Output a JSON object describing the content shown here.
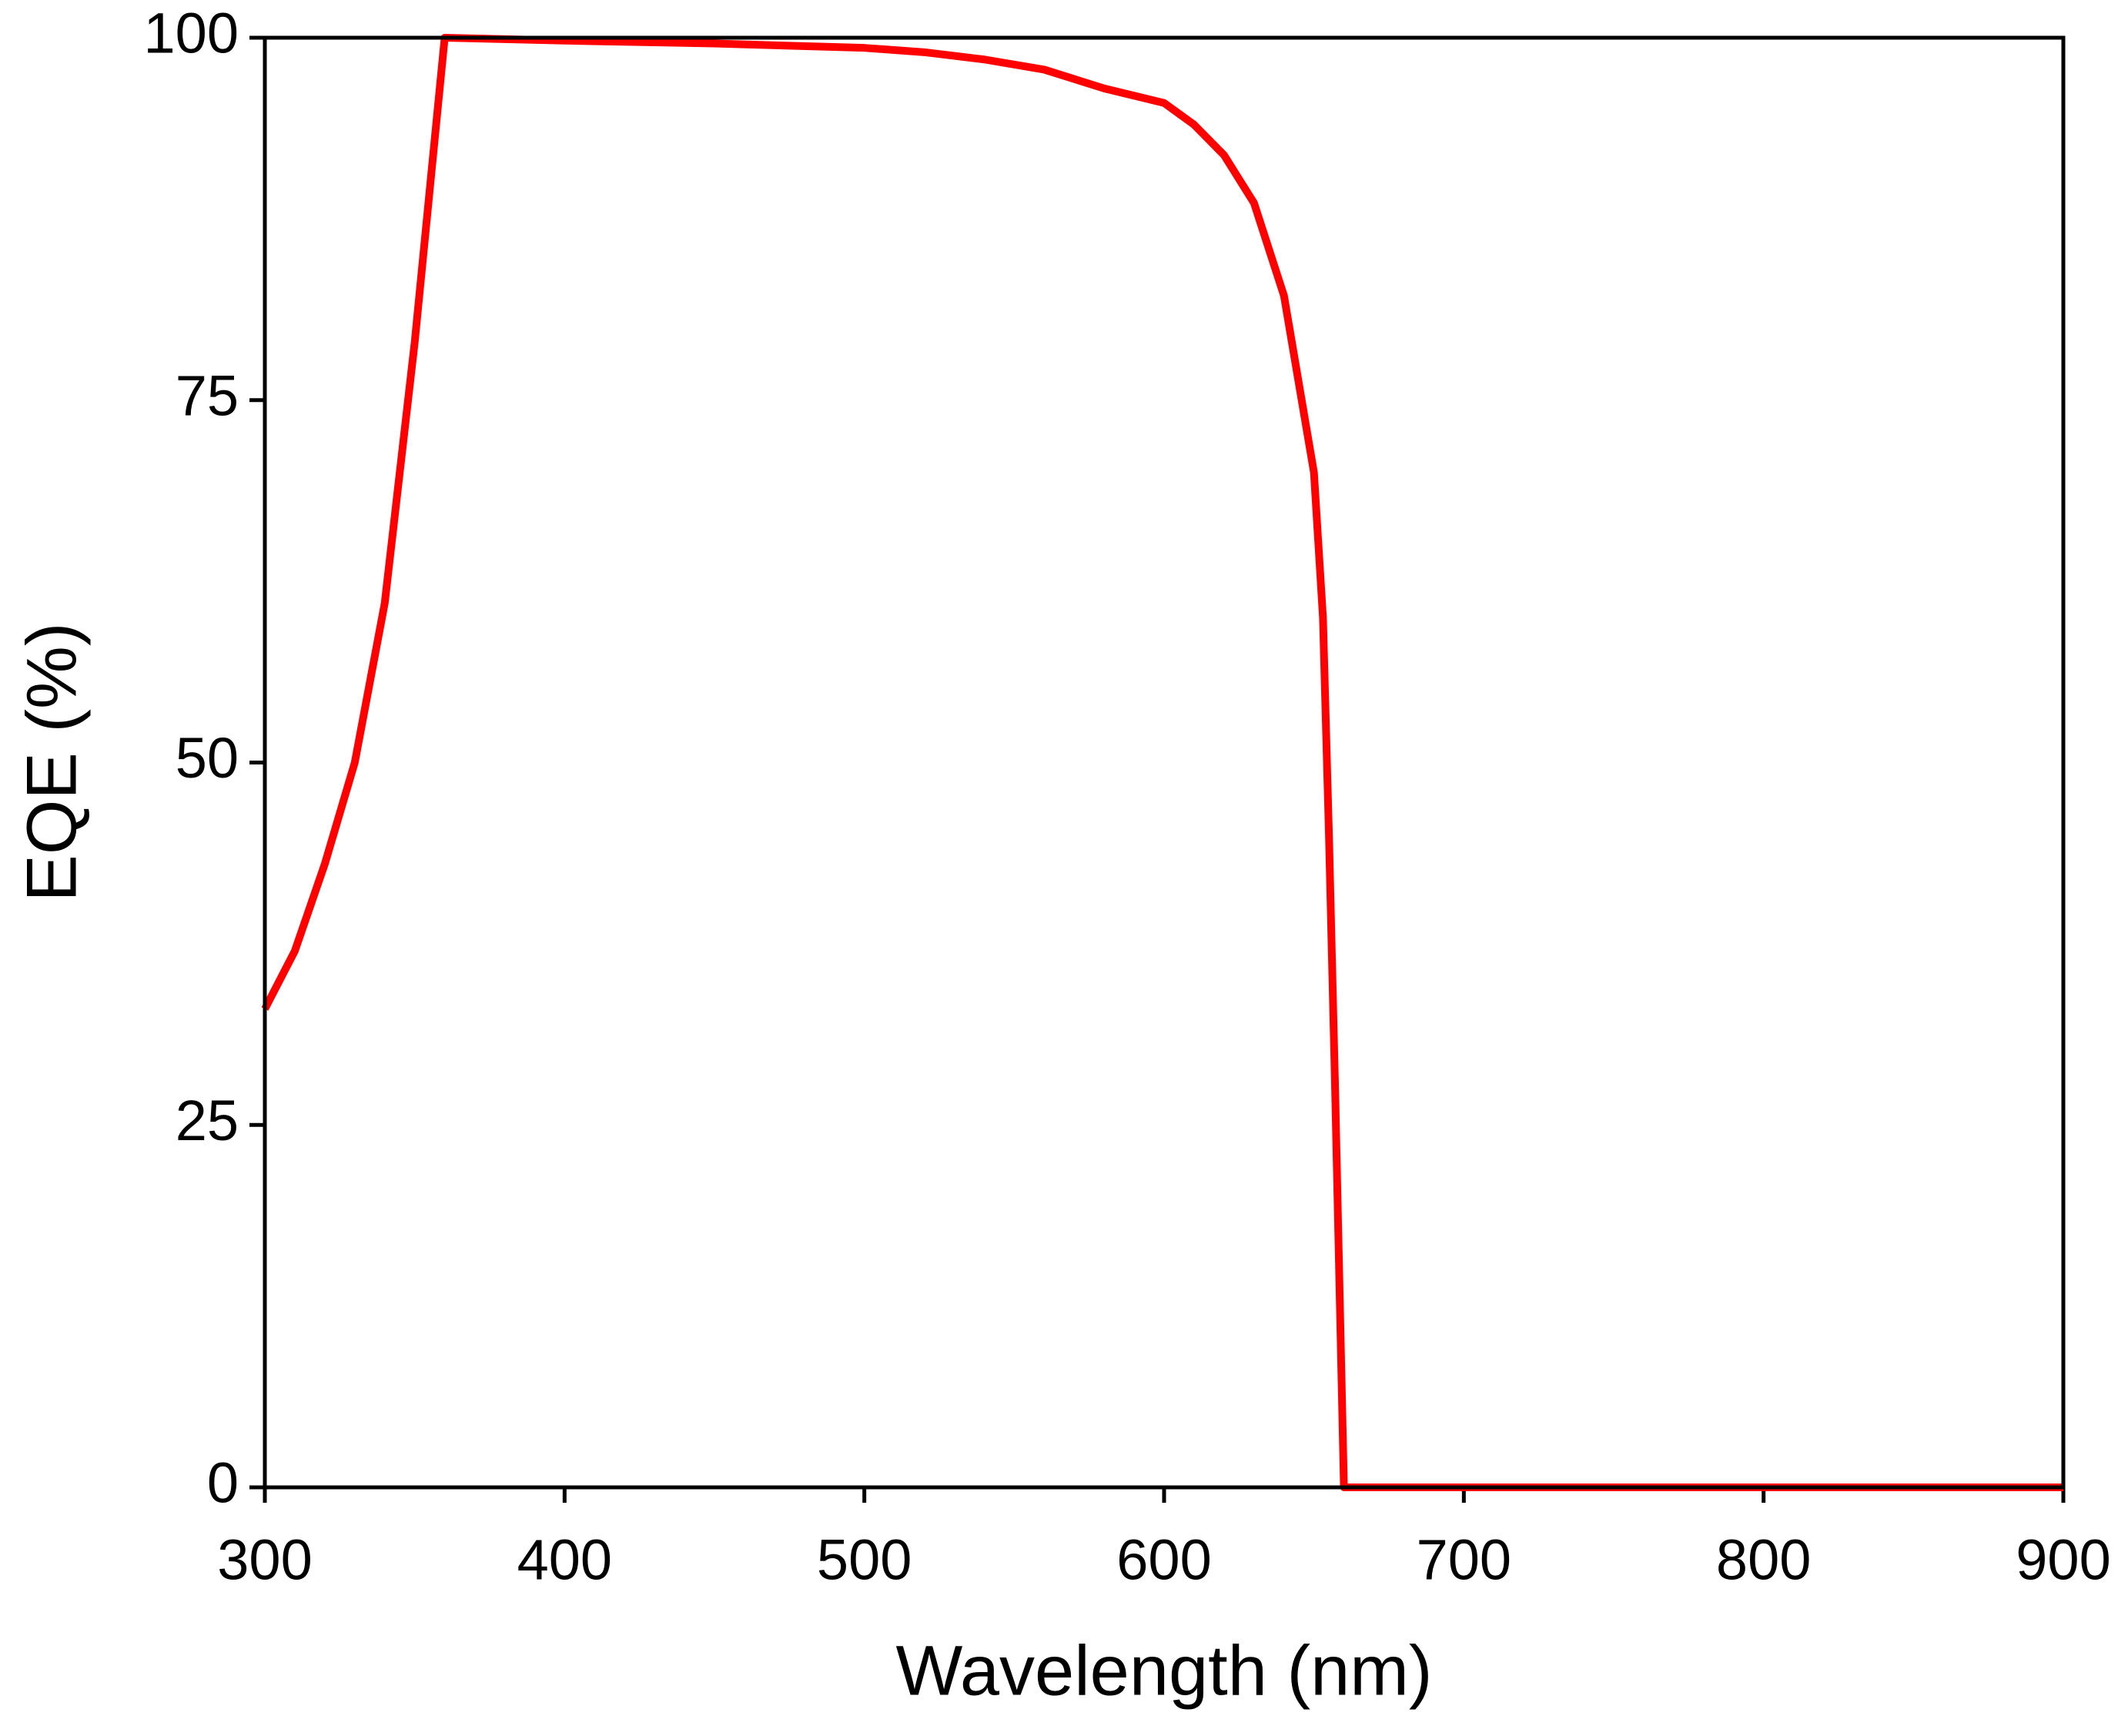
{
  "chart_data": {
    "type": "line",
    "xlabel": "Wavelength (nm)",
    "ylabel": "EQE (%)",
    "x": [
      300,
      310,
      320,
      330,
      340,
      350,
      360,
      400,
      450,
      500,
      520,
      540,
      560,
      580,
      600,
      610,
      620,
      630,
      640,
      650,
      653,
      655,
      657,
      660,
      700,
      800,
      900
    ],
    "series": [
      {
        "name": "EQE",
        "color": "#ff0000",
        "values": [
          33,
          37,
          43,
          50,
          61,
          79,
          100,
          99.8,
          99.6,
          99.3,
          99,
          98.5,
          97.8,
          96.5,
          95.5,
          94,
          91.9,
          88.6,
          82.2,
          70,
          60,
          45,
          28,
          0,
          0,
          0,
          0
        ]
      }
    ],
    "xlim": [
      300,
      900
    ],
    "xticks": [
      300,
      400,
      500,
      600,
      700,
      800,
      900
    ],
    "ylim": [
      0,
      100
    ],
    "yticks": [
      0,
      25,
      50,
      75,
      100
    ]
  }
}
